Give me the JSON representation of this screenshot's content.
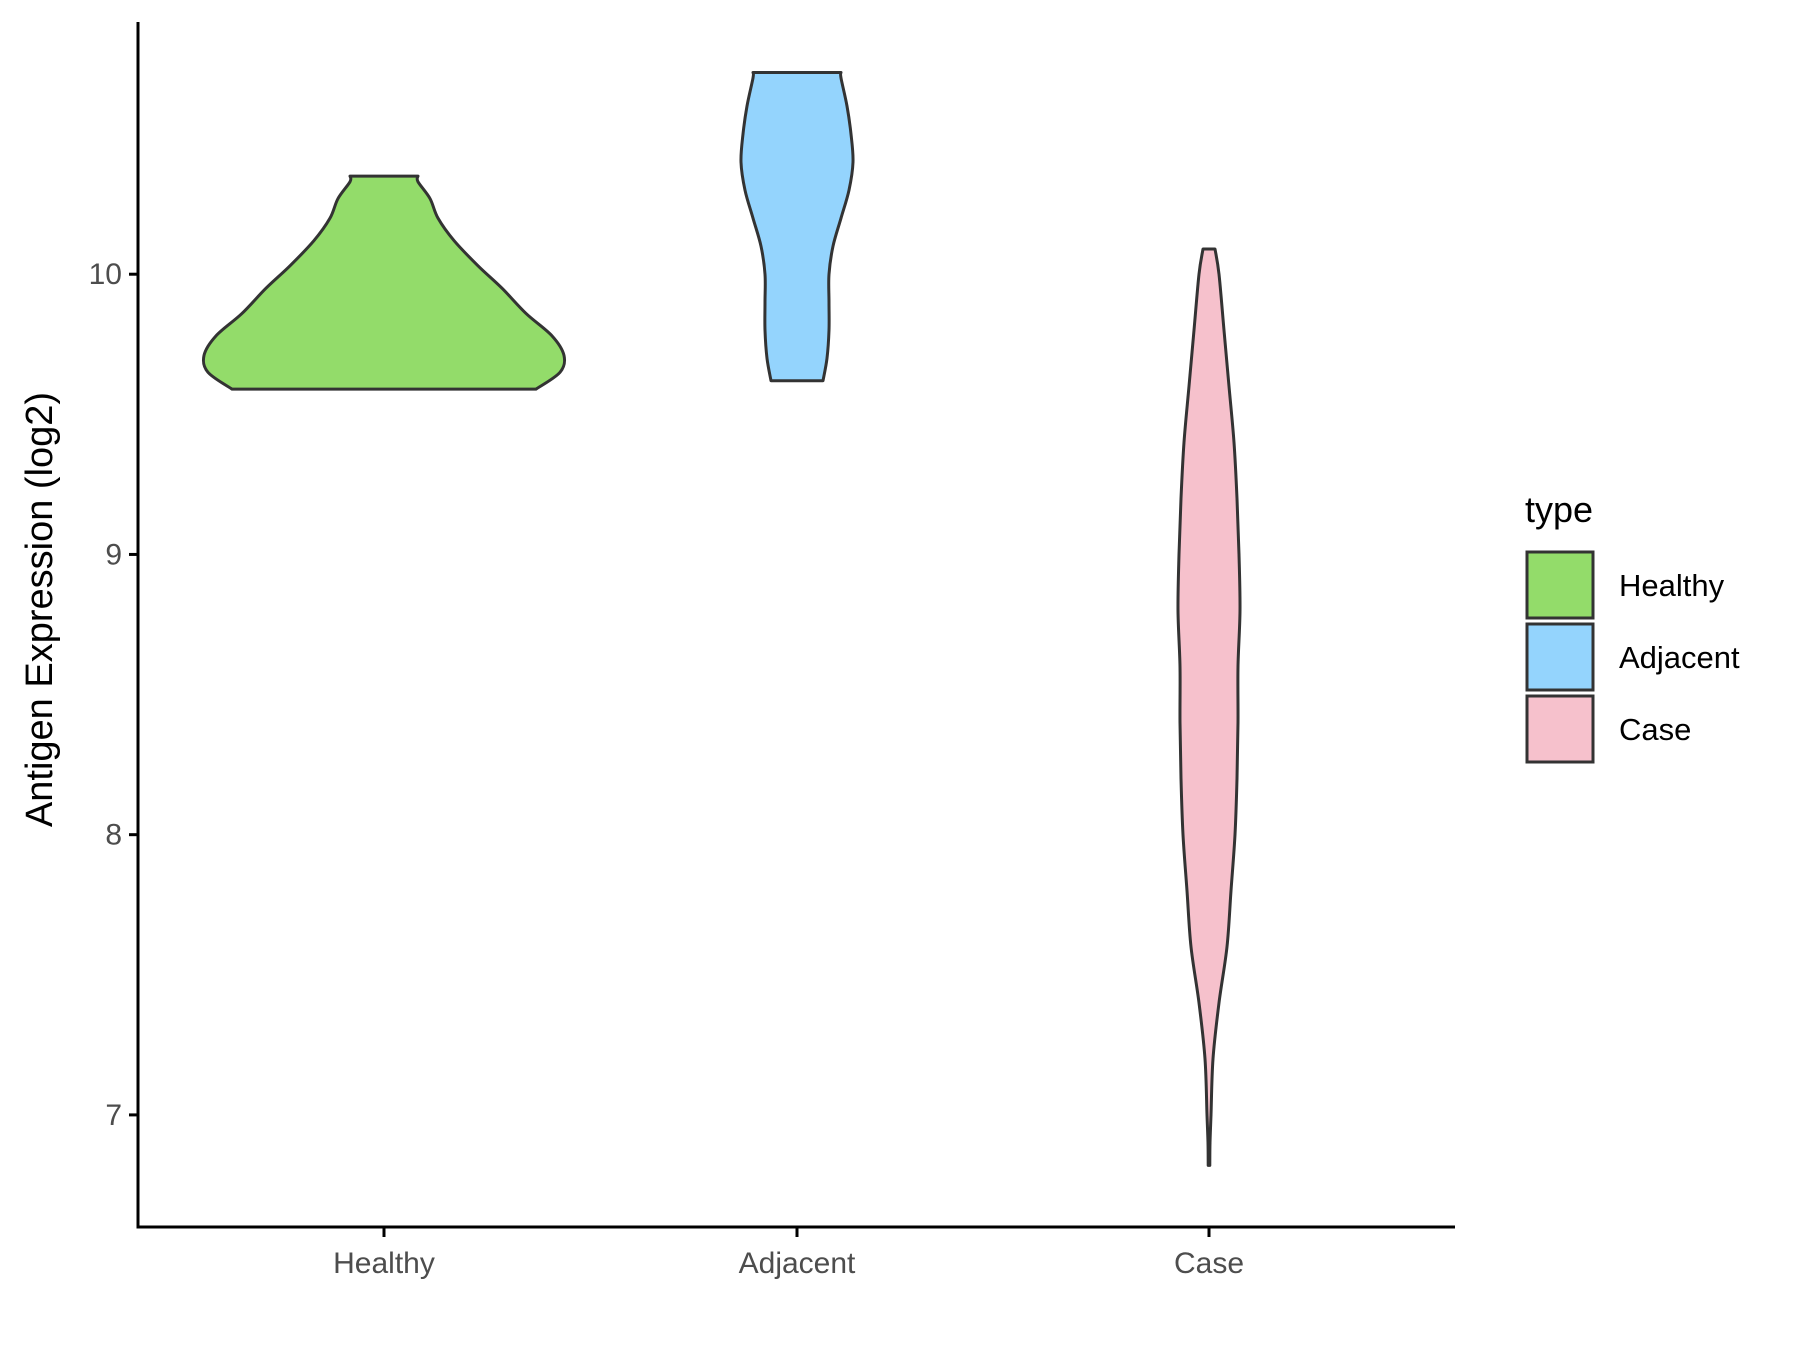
{
  "chart_data": {
    "type": "violin",
    "xlabel": "",
    "ylabel": "Antigen Expression (log2)",
    "categories": [
      "Healthy",
      "Adjacent",
      "Case"
    ],
    "ylim": [
      6.6,
      10.9
    ],
    "yticks": [
      7,
      8,
      9,
      10
    ],
    "grid": false,
    "legend": {
      "title": "type",
      "position": "right",
      "entries": [
        {
          "label": "Healthy",
          "color": "#93DC6A"
        },
        {
          "label": "Adjacent",
          "color": "#94D4FD"
        },
        {
          "label": "Case",
          "color": "#F6C1CC"
        }
      ]
    },
    "series": [
      {
        "category": "Healthy",
        "color": "#93DC6A",
        "min": 9.59,
        "max": 10.35,
        "density": [
          {
            "y": 9.59,
            "w": 0.76
          },
          {
            "y": 9.65,
            "w": 0.88
          },
          {
            "y": 9.71,
            "w": 0.9
          },
          {
            "y": 9.78,
            "w": 0.84
          },
          {
            "y": 9.86,
            "w": 0.71
          },
          {
            "y": 9.95,
            "w": 0.59
          },
          {
            "y": 10.03,
            "w": 0.47
          },
          {
            "y": 10.12,
            "w": 0.35
          },
          {
            "y": 10.2,
            "w": 0.27
          },
          {
            "y": 10.27,
            "w": 0.23
          },
          {
            "y": 10.33,
            "w": 0.17
          },
          {
            "y": 10.35,
            "w": 0.17
          }
        ]
      },
      {
        "category": "Adjacent",
        "color": "#94D4FD",
        "min": 9.62,
        "max": 10.72,
        "density": [
          {
            "y": 9.62,
            "w": 0.13
          },
          {
            "y": 9.7,
            "w": 0.15
          },
          {
            "y": 9.8,
            "w": 0.16
          },
          {
            "y": 9.9,
            "w": 0.16
          },
          {
            "y": 10.0,
            "w": 0.16
          },
          {
            "y": 10.1,
            "w": 0.18
          },
          {
            "y": 10.2,
            "w": 0.22
          },
          {
            "y": 10.3,
            "w": 0.26
          },
          {
            "y": 10.4,
            "w": 0.28
          },
          {
            "y": 10.5,
            "w": 0.27
          },
          {
            "y": 10.6,
            "w": 0.25
          },
          {
            "y": 10.7,
            "w": 0.22
          },
          {
            "y": 10.72,
            "w": 0.22
          }
        ]
      },
      {
        "category": "Case",
        "color": "#F6C1CC",
        "min": 6.82,
        "max": 10.09,
        "density": [
          {
            "y": 6.82,
            "w": 0.004
          },
          {
            "y": 6.9,
            "w": 0.005
          },
          {
            "y": 7.0,
            "w": 0.01
          },
          {
            "y": 7.2,
            "w": 0.02
          },
          {
            "y": 7.4,
            "w": 0.05
          },
          {
            "y": 7.6,
            "w": 0.09
          },
          {
            "y": 7.8,
            "w": 0.11
          },
          {
            "y": 8.0,
            "w": 0.13
          },
          {
            "y": 8.2,
            "w": 0.14
          },
          {
            "y": 8.4,
            "w": 0.145
          },
          {
            "y": 8.6,
            "w": 0.145
          },
          {
            "y": 8.8,
            "w": 0.155
          },
          {
            "y": 9.0,
            "w": 0.15
          },
          {
            "y": 9.2,
            "w": 0.14
          },
          {
            "y": 9.4,
            "w": 0.125
          },
          {
            "y": 9.6,
            "w": 0.1
          },
          {
            "y": 9.8,
            "w": 0.075
          },
          {
            "y": 10.0,
            "w": 0.05
          },
          {
            "y": 10.09,
            "w": 0.03
          }
        ]
      }
    ]
  }
}
